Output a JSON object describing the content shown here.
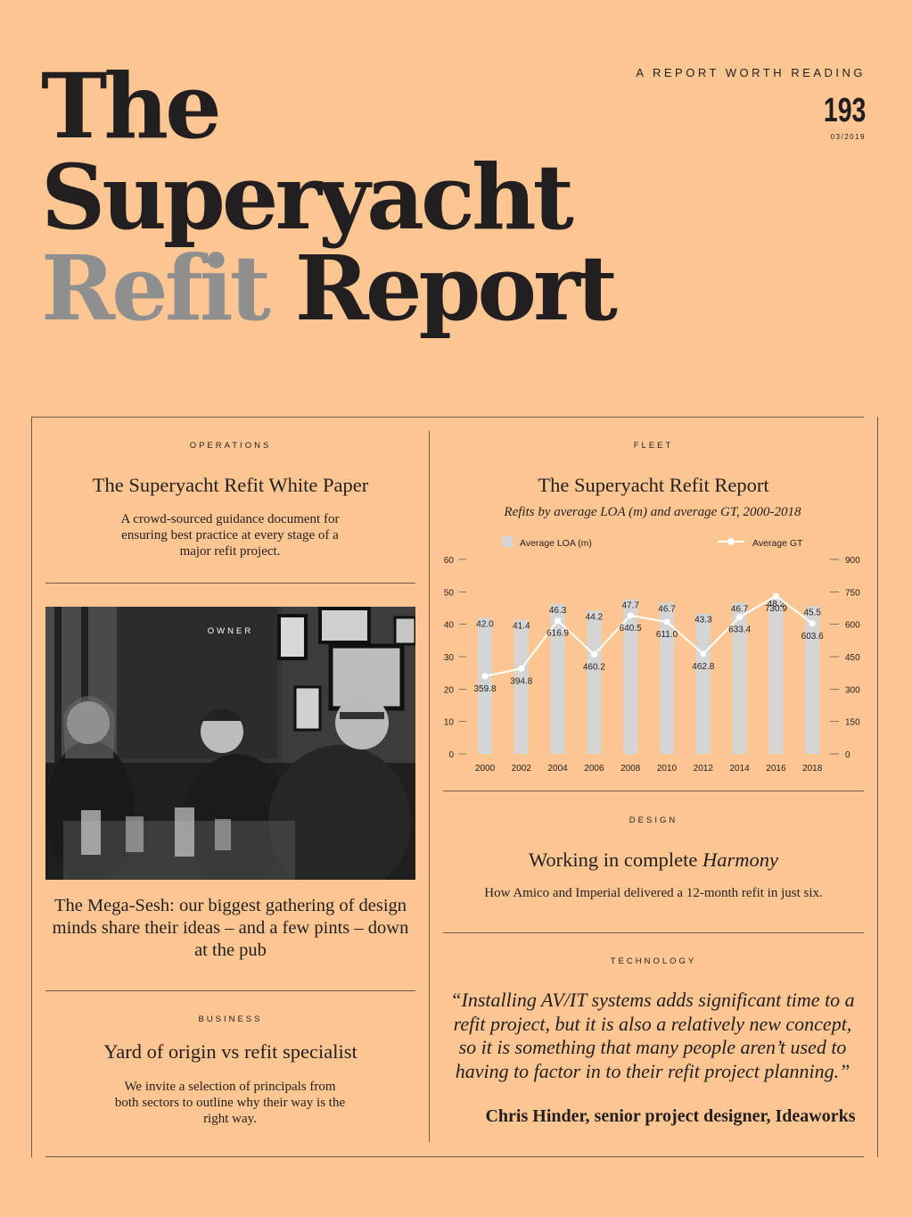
{
  "masthead": {
    "title_line1": "The",
    "title_line2": "Superyacht",
    "title_accent": "Refit",
    "title_rest": "Report",
    "tagline": "A REPORT WORTH READING",
    "issue_number": "193",
    "issue_date": "03/2019"
  },
  "operations": {
    "kicker": "OPERATIONS",
    "headline": "The Superyacht Refit White Paper",
    "blurb": "A crowd-sourced guidance document for ensuring best practice at every stage of a major refit project."
  },
  "owner": {
    "kicker": "OWNER",
    "headline": "The Mega-Sesh: our biggest gathering of design minds share their ideas – and a few pints – down at the pub"
  },
  "business": {
    "kicker": "BUSINESS",
    "headline": "Yard of origin vs refit specialist",
    "blurb": "We invite a selection of principals from both sectors to outline why their way is the right way."
  },
  "fleet": {
    "kicker": "FLEET",
    "headline": "The Superyacht Refit Report",
    "subtitle": "Refits by average LOA (m) and average GT, 2000-2018"
  },
  "design": {
    "kicker": "DESIGN",
    "headline_prefix": "Working in complete",
    "headline_emphasis": "Harmony",
    "blurb": "How Amico and Imperial delivered a 12-month refit in just six."
  },
  "technology": {
    "kicker": "TECHNOLOGY",
    "quote": "“Installing AV/IT systems adds significant time to a refit project, but it is also a relatively new concept, so it is something that many people aren’t used to having to factor in to their refit project planning.”",
    "attribution": "Chris Hinder, senior project designer, Ideaworks"
  },
  "chart_data": {
    "type": "bar",
    "categories": [
      "2000",
      "2002",
      "2004",
      "2006",
      "2008",
      "2010",
      "2012",
      "2014",
      "2016",
      "2018"
    ],
    "series": [
      {
        "name": "Average LOA (m)",
        "type": "bar",
        "axis": "left",
        "values": [
          42.0,
          41.4,
          46.3,
          44.2,
          47.7,
          46.7,
          43.3,
          46.7,
          48.2,
          45.5
        ],
        "labels": [
          "42.0",
          "41.4",
          "46.3",
          "44.2",
          "47.7",
          "46.7",
          "43.3",
          "46.7",
          "48.2",
          "45.5"
        ]
      },
      {
        "name": "Average GT",
        "type": "line",
        "axis": "right",
        "values": [
          359.8,
          394.8,
          616.9,
          460.2,
          640.5,
          611.0,
          462.8,
          633.4,
          730.9,
          603.6
        ],
        "labels": [
          "359.8",
          "394.8",
          "616.9",
          "460.2",
          "640.5",
          "611.0",
          "462.8",
          "633.4",
          "730.9",
          "603.6"
        ]
      }
    ],
    "left_axis": {
      "ylim": [
        0,
        60
      ],
      "ticks": [
        "0",
        "10",
        "20",
        "30",
        "40",
        "50",
        "60"
      ]
    },
    "right_axis": {
      "ylim": [
        0,
        900
      ],
      "ticks": [
        "0",
        "150",
        "300",
        "450",
        "600",
        "750",
        "900"
      ]
    },
    "legend_position": "top",
    "grid": false,
    "colors": {
      "bar": "#d6d5d6",
      "line": "#ffffff",
      "text": "#231f20",
      "tick": "#5a4c40"
    }
  }
}
